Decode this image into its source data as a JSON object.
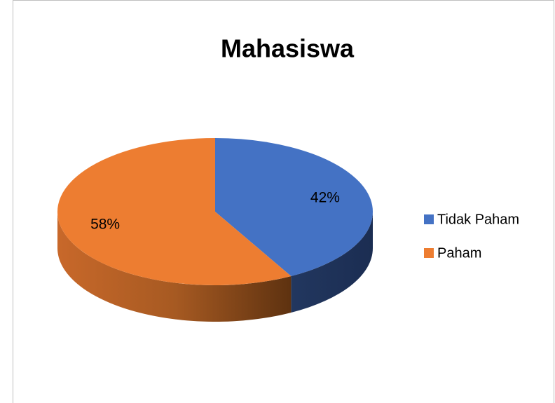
{
  "chart_data": {
    "type": "pie3d",
    "title": "Mahasiswa",
    "categories": [
      "Tidak Paham",
      "Paham"
    ],
    "values": [
      42,
      58
    ],
    "value_labels": [
      "42%",
      "58%"
    ],
    "colors": [
      "#4472c4",
      "#ed7d31"
    ],
    "legend": "right"
  }
}
